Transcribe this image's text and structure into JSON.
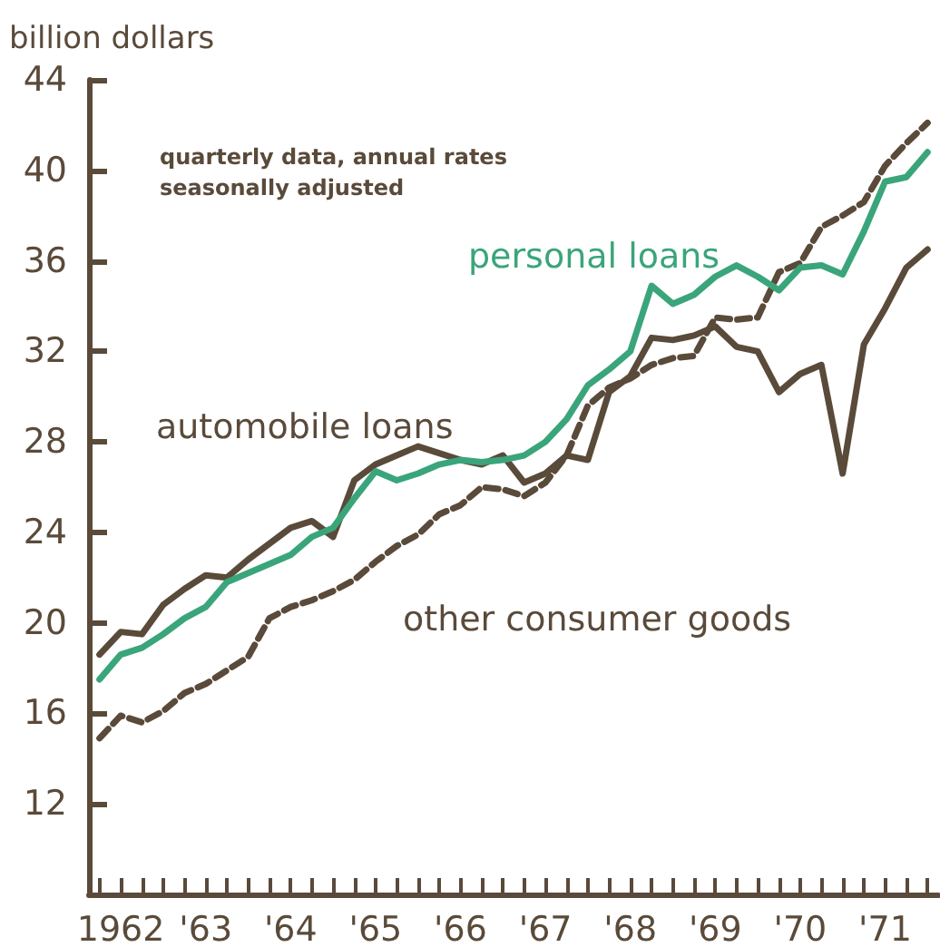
{
  "chart_data": {
    "type": "line",
    "ylabel": "billion dollars",
    "annotations": [
      "quarterly data, annual rates seasonally adjusted"
    ],
    "categories": [
      null,
      "1962",
      null,
      null,
      null,
      "'63",
      null,
      null,
      null,
      "'64",
      null,
      null,
      null,
      "'65",
      null,
      null,
      null,
      "'66",
      null,
      null,
      null,
      "'67",
      null,
      null,
      null,
      "'68",
      null,
      null,
      null,
      "'69",
      null,
      null,
      null,
      "'70",
      null,
      null,
      null,
      "'71",
      null,
      null
    ],
    "series": [
      {
        "name": "personal loans",
        "color": "#3aa57a",
        "line_style": "solid",
        "values": [
          17.5,
          18.6,
          18.9,
          19.5,
          20.2,
          20.7,
          21.8,
          22.2,
          22.6,
          23.0,
          23.8,
          24.2,
          25.5,
          26.7,
          26.3,
          26.6,
          27.0,
          27.2,
          27.1,
          27.2,
          27.4,
          28.0,
          29.0,
          30.5,
          31.2,
          32.0,
          34.9,
          34.1,
          34.5,
          35.3,
          35.8,
          35.3,
          34.7,
          35.7,
          35.8,
          35.4,
          37.3,
          39.5,
          39.7,
          40.8
        ]
      },
      {
        "name": "automobile loans",
        "color": "#5a4a3a",
        "line_style": "solid",
        "values": [
          18.6,
          19.6,
          19.5,
          20.8,
          21.5,
          22.1,
          22.0,
          22.8,
          23.5,
          24.2,
          24.5,
          23.8,
          26.3,
          27.0,
          27.4,
          27.8,
          27.5,
          27.2,
          27.0,
          27.4,
          26.2,
          26.6,
          27.4,
          27.2,
          30.2,
          30.9,
          32.6,
          32.5,
          32.7,
          33.1,
          32.2,
          32.0,
          30.2,
          31.0,
          31.4,
          26.6,
          32.3,
          33.9,
          35.7,
          36.5
        ]
      },
      {
        "name": "other consumer goods",
        "color": "#5a4a3a",
        "line_style": "dashed",
        "values": [
          14.9,
          15.9,
          15.6,
          16.1,
          16.9,
          17.3,
          17.9,
          18.5,
          20.2,
          20.7,
          21.0,
          21.4,
          21.9,
          22.7,
          23.4,
          23.9,
          24.8,
          25.2,
          26.0,
          25.9,
          25.6,
          26.2,
          27.4,
          29.6,
          30.4,
          30.8,
          31.4,
          31.7,
          31.8,
          33.5,
          33.4,
          33.5,
          35.5,
          35.9,
          37.5,
          38.0,
          38.6,
          40.2,
          41.2,
          42.1
        ]
      }
    ],
    "ylim": [
      8,
      44
    ],
    "yticks": [
      12,
      16,
      20,
      24,
      28,
      32,
      36,
      40,
      44
    ],
    "grid": false,
    "legend": false,
    "marker": "none"
  }
}
